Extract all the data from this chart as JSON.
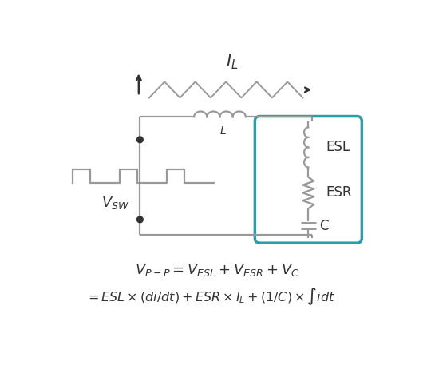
{
  "bg_color": "#ffffff",
  "circuit_color": "#999999",
  "box_color": "#2B9EAD",
  "lw": 1.6,
  "eq1": "$V_{P-P} = V_{ESL} + V_{ESR} + V_C$",
  "eq2": "$= ESL \\times (di/dt) + ESR \\times I_L + (1/C) \\times \\int idt$",
  "label_L": "L",
  "label_ESL": "ESL",
  "label_ESR": "ESR",
  "label_C": "C",
  "label_IL": "$I_L$",
  "label_VSW": "$V_{SW}$"
}
